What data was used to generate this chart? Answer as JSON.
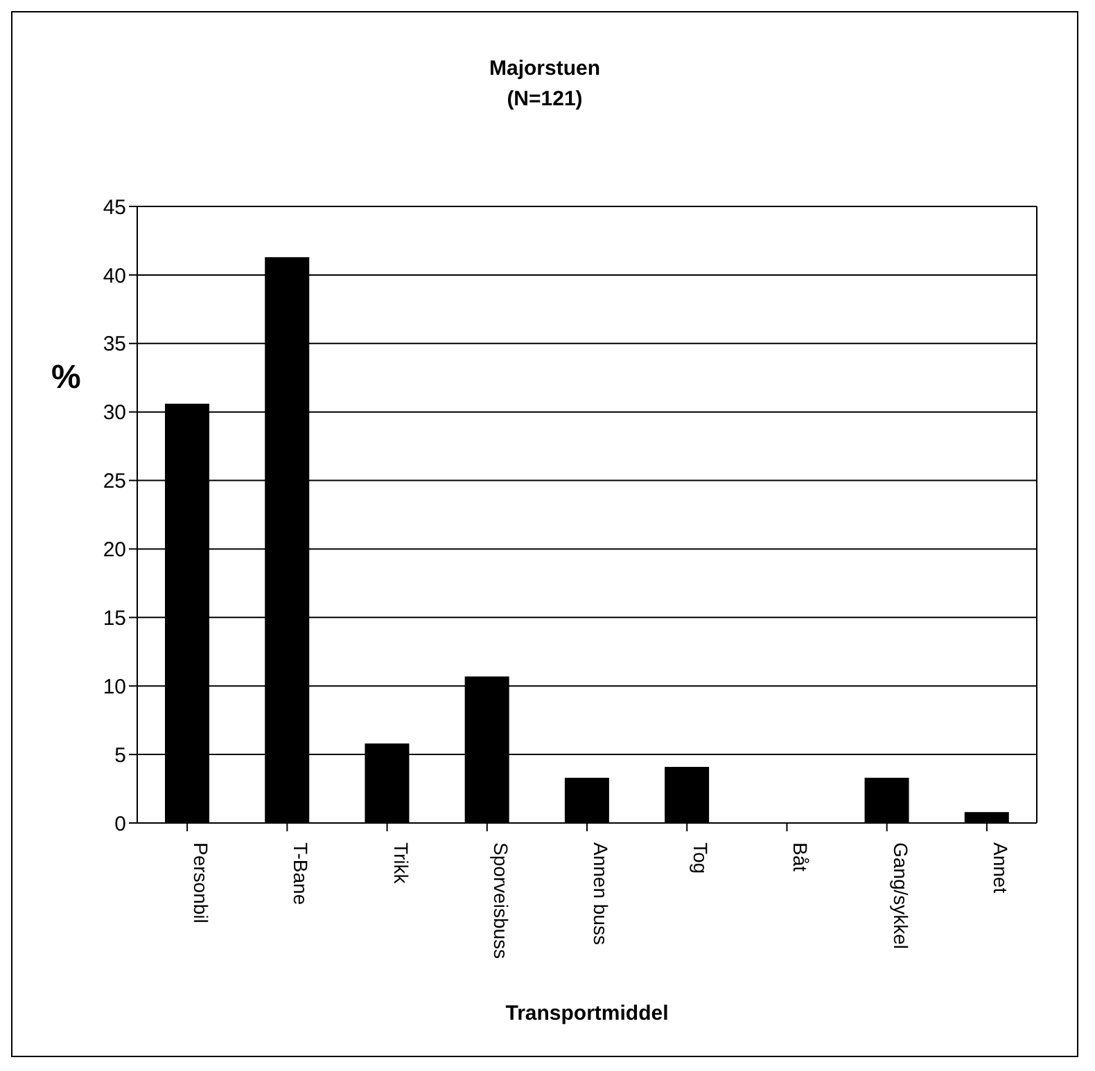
{
  "chart_data": {
    "type": "bar",
    "title": "Majorstuen",
    "subtitle": "(N=121)",
    "xlabel": "Transportmiddel",
    "ylabel": "%",
    "categories": [
      "Personbil",
      "T-Bane",
      "Trikk",
      "Sporveisbuss",
      "Annen buss",
      "Tog",
      "Båt",
      "Gang/sykkel",
      "Annet"
    ],
    "values": [
      30.6,
      41.3,
      5.8,
      10.7,
      3.3,
      4.1,
      0,
      3.3,
      0.8
    ],
    "color": "#000000",
    "ylim": [
      0,
      45
    ],
    "yticks": [
      0,
      5,
      10,
      15,
      20,
      25,
      30,
      35,
      40,
      45
    ],
    "grid": "y"
  }
}
